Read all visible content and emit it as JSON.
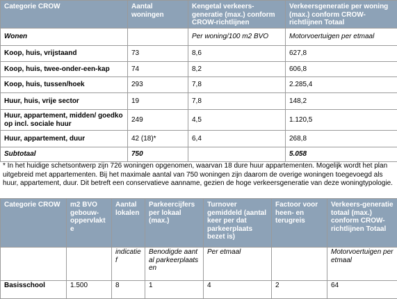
{
  "table1": {
    "header": [
      "Categorie CROW",
      "Aantal woningen",
      "Kengetal verkeers-generatie (max.) conform CROW-richtlijnen",
      "Verkeersgeneratie per woning (max.) conform CROW-richtlijnen Totaal"
    ],
    "rows": [
      [
        "Wonen",
        null,
        "Per woning/100 m2 BVO",
        "Motorvoertuigen per etmaal"
      ],
      [
        "Koop, huis, vrijstaand",
        "73",
        "8,6",
        "627,8"
      ],
      [
        "Koop, huis, twee-onder-een-kap",
        "74",
        "8,2",
        "606,8"
      ],
      [
        "Koop, huis, tussen/hoek",
        "293",
        "7,8",
        "2.285,4"
      ],
      [
        "Huur, huis, vrije sector",
        "19",
        "7,8",
        "148,2"
      ],
      [
        "Huur, appartement, midden/ goedkoop incl. sociale huur",
        "249",
        "4,5",
        "1.120,5"
      ],
      [
        "Huur, appartement, duur",
        "42 (18)*",
        "6,4",
        "268,8"
      ],
      [
        "Subtotaal",
        "750",
        null,
        "5.058"
      ]
    ]
  },
  "note": "* In het huidige schetsontwerp zijn 726 woningen opgenomen, waarvan 18 dure huur appartementen. Mogelijk wordt het plan uitgebreid met appartementen. Bij het maximale aantal van 750 woningen zijn daarom de overige woningen toegevoegd als huur, appartement, duur. Dit betreft een conservatieve aanname, gezien de hoge verkeersgeneratie van deze woningtypologie.",
  "table2": {
    "header": [
      "Categorie CROW",
      "m2 BVO gebouw-oppervlakte",
      "Aantal lokalen",
      "Parkeercijfers per lokaal (max.)",
      "Turnover gemiddeld (aantal keer per dat parkeerplaats bezet is)",
      "Factoor voor heen- en terugreis",
      "Verkeers-generatie totaal (max.) conform CROW-richtlijnen Totaal"
    ],
    "rows": [
      [
        null,
        null,
        "indicatief",
        "Benodigde aantal parkeerplaatsen",
        "Per etmaal",
        null,
        "Motorvoertuigen per etmaal"
      ],
      [
        "Basisschool",
        "1.500",
        "8",
        "1",
        "4",
        "2",
        "64"
      ]
    ]
  }
}
